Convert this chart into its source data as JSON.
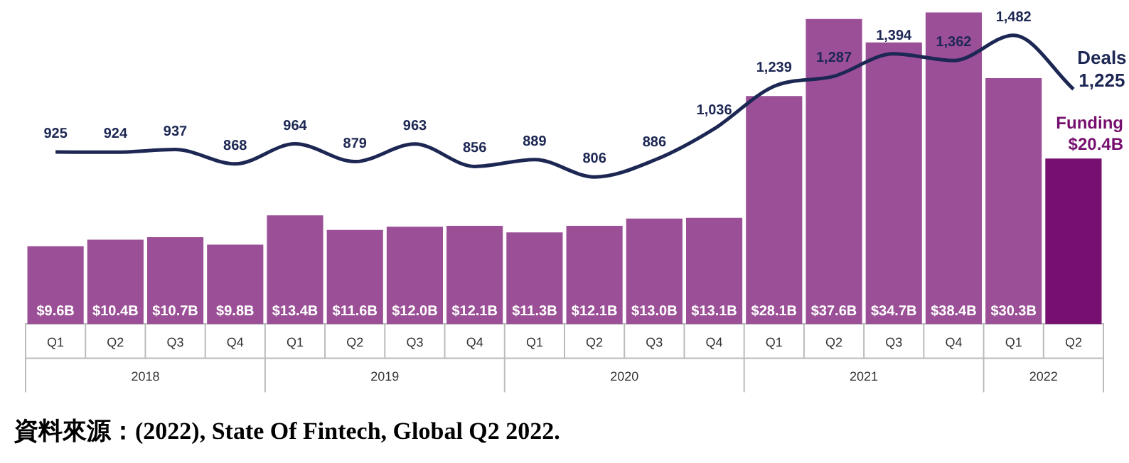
{
  "chart_data": {
    "type": "bar",
    "categories": [
      "Q1",
      "Q2",
      "Q3",
      "Q4",
      "Q1",
      "Q2",
      "Q3",
      "Q4",
      "Q1",
      "Q2",
      "Q3",
      "Q4",
      "Q1",
      "Q2",
      "Q3",
      "Q4",
      "Q1",
      "Q2"
    ],
    "series": [
      {
        "name": "Funding",
        "colors": [
          "#9b4f96",
          "#9b4f96",
          "#9b4f96",
          "#9b4f96",
          "#9b4f96",
          "#9b4f96",
          "#9b4f96",
          "#9b4f96",
          "#9b4f96",
          "#9b4f96",
          "#9b4f96",
          "#9b4f96",
          "#9b4f96",
          "#9b4f96",
          "#9b4f96",
          "#9b4f96",
          "#9b4f96",
          "#760f6f"
        ],
        "values": [
          9.6,
          10.4,
          10.7,
          9.8,
          13.4,
          11.6,
          12.0,
          12.1,
          11.3,
          12.1,
          13.0,
          13.1,
          28.1,
          37.6,
          34.7,
          38.4,
          30.3,
          20.4
        ],
        "value_labels": [
          "$9.6B",
          "$10.4B",
          "$10.7B",
          "$9.8B",
          "$13.4B",
          "$11.6B",
          "$12.0B",
          "$12.1B",
          "$11.3B",
          "$12.1B",
          "$13.0B",
          "$13.1B",
          "$28.1B",
          "$37.6B",
          "$34.7B",
          "$38.4B",
          "$30.3B",
          "$20.4B"
        ]
      },
      {
        "name": "Deals",
        "type": "line",
        "axis": "y2",
        "color": "#1d2753",
        "values": [
          925,
          924,
          937,
          868,
          964,
          879,
          963,
          856,
          889,
          806,
          886,
          1036,
          1239,
          1287,
          1394,
          1362,
          1482,
          1225
        ],
        "value_labels": [
          "925",
          "924",
          "937",
          "868",
          "964",
          "879",
          "963",
          "856",
          "889",
          "806",
          "886",
          "1,036",
          "1,239",
          "1,287",
          "1,394",
          "1,362",
          "1,482",
          "1,225"
        ]
      }
    ],
    "tick_labels": "x",
    "grid": false,
    "legend": false,
    "marker": "none",
    "annotations": [
      "2018",
      "2019",
      "2020",
      "2021",
      "2022",
      "資料來源：(2022), State Of Fintech, Global Q2 2022."
    ]
  }
}
